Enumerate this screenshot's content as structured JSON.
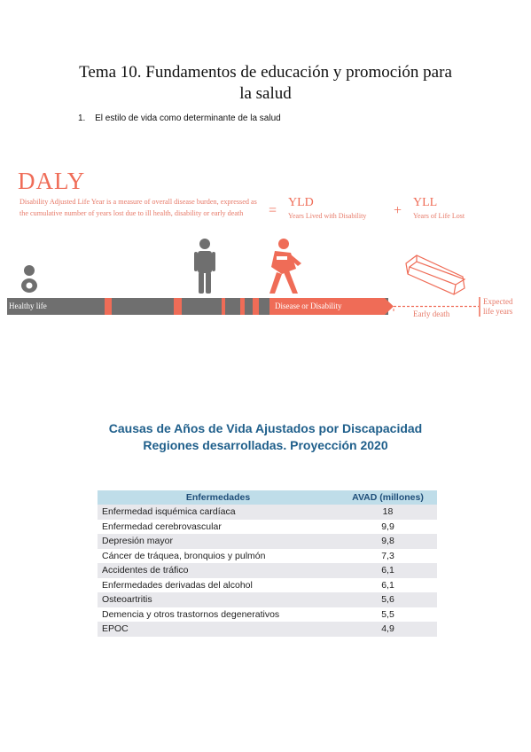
{
  "document": {
    "title_line1": "Tema 10. Fundamentos de educación y promoción para",
    "title_line2": "la salud",
    "section_number": "1.",
    "section_title": "El estilo de vida como determinante de la salud"
  },
  "daly_infographic": {
    "title": "DALY",
    "description": "Disability Adjusted Life Year is a measure of overall disease burden, expressed as the cumulative number of years lost due to ill health, disability or early death",
    "equals": "=",
    "plus": "+",
    "yld": "YLD",
    "yld_full": "Years Lived with Disability",
    "yll": "YLL",
    "yll_full": "Years of Life Lost",
    "bar_left_label": "Healthy life",
    "bar_right_label": "Disease or Disability",
    "early_death_label": "Early death",
    "expected_line1": "Expected",
    "expected_line2": "life years",
    "icons": [
      "baby-icon",
      "person-icon",
      "disabled-person-icon",
      "coffin-icon"
    ],
    "colors": {
      "accent": "#ef6c57",
      "bar_gray": "#6f6f6f"
    }
  },
  "table_section": {
    "heading_line1": "Causas de Años de Vida Ajustados por Discapacidad",
    "heading_line2": "Regiones desarrolladas. Proyección 2020",
    "columns": [
      "Enfermedades",
      "AVAD (millones)"
    ],
    "rows": [
      [
        "Enfermedad isquémica cardíaca",
        "18"
      ],
      [
        "Enfermedad cerebrovascular",
        "9,9"
      ],
      [
        "Depresión mayor",
        "9,8"
      ],
      [
        "Cáncer de tráquea, bronquios y pulmón",
        "7,3"
      ],
      [
        "Accidentes de tráfico",
        "6,1"
      ],
      [
        "Enfermedades derivadas del alcohol",
        "6,1"
      ],
      [
        "Osteoartritis",
        "5,6"
      ],
      [
        "Demencia y otros trastornos degenerativos",
        "5,5"
      ],
      [
        "EPOC",
        "4,9"
      ]
    ],
    "colors": {
      "header_bg": "#bfdde9",
      "header_text": "#1f4e79",
      "heading_text": "#1f5f8b"
    }
  }
}
